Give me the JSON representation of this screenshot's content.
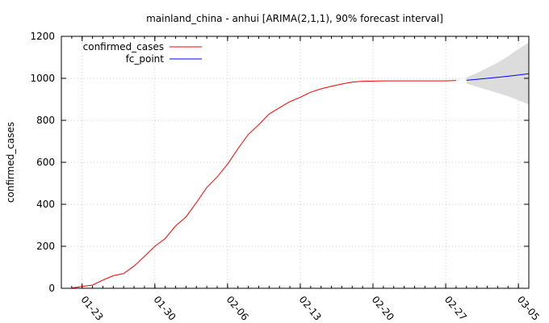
{
  "chart_data": {
    "type": "line",
    "title": "mainland_china - anhui [ARIMA(2,1,1), 90% forecast interval]",
    "xlabel": "",
    "ylabel": "confirmed_cases",
    "ylim": [
      0,
      1200
    ],
    "y_ticks": [
      0,
      200,
      400,
      600,
      800,
      1000,
      1200
    ],
    "y_tick_labels": [
      "0",
      "200",
      "400",
      "600",
      "800",
      "1000",
      "1200"
    ],
    "xlim": [
      "2020-01-21",
      "2020-03-06"
    ],
    "x_ticks": [
      "2020-01-23",
      "2020-01-30",
      "2020-02-06",
      "2020-02-13",
      "2020-02-20",
      "2020-02-27",
      "2020-03-05"
    ],
    "x_tick_labels": [
      "01-23",
      "01-30",
      "02-06",
      "02-13",
      "02-20",
      "02-27",
      "03-05"
    ],
    "grid": true,
    "legend_position": "top-left",
    "series": [
      {
        "name": "confirmed_cases",
        "color": "#ff0000",
        "x": [
          "2020-01-22",
          "2020-01-23",
          "2020-01-24",
          "2020-01-25",
          "2020-01-26",
          "2020-01-27",
          "2020-01-28",
          "2020-01-29",
          "2020-01-30",
          "2020-01-31",
          "2020-02-01",
          "2020-02-02",
          "2020-02-03",
          "2020-02-04",
          "2020-02-05",
          "2020-02-06",
          "2020-02-07",
          "2020-02-08",
          "2020-02-09",
          "2020-02-10",
          "2020-02-11",
          "2020-02-12",
          "2020-02-13",
          "2020-02-14",
          "2020-02-15",
          "2020-02-16",
          "2020-02-17",
          "2020-02-18",
          "2020-02-19",
          "2020-02-20",
          "2020-02-21",
          "2020-02-22",
          "2020-02-23",
          "2020-02-24",
          "2020-02-25",
          "2020-02-26",
          "2020-02-27",
          "2020-02-28"
        ],
        "values": [
          1,
          9,
          15,
          39,
          60,
          70,
          106,
          152,
          200,
          237,
          297,
          340,
          408,
          480,
          530,
          591,
          665,
          733,
          779,
          830,
          860,
          889,
          910,
          934,
          950,
          962,
          973,
          982,
          986,
          987,
          988,
          988,
          988,
          988,
          988,
          988,
          988,
          990
        ]
      },
      {
        "name": "fc_point",
        "color": "#0000ff",
        "x": [
          "2020-02-29",
          "2020-03-01",
          "2020-03-02",
          "2020-03-03",
          "2020-03-04",
          "2020-03-05",
          "2020-03-06"
        ],
        "values": [
          991,
          995,
          1000,
          1005,
          1010,
          1016,
          1022
        ]
      }
    ],
    "forecast_interval": {
      "level": "90%",
      "color": "#dcdcdc",
      "x": [
        "2020-02-29",
        "2020-03-01",
        "2020-03-02",
        "2020-03-03",
        "2020-03-04",
        "2020-03-05",
        "2020-03-06"
      ],
      "lower": [
        975,
        960,
        945,
        930,
        915,
        895,
        875
      ],
      "upper": [
        1005,
        1025,
        1050,
        1075,
        1105,
        1140,
        1170
      ]
    }
  }
}
